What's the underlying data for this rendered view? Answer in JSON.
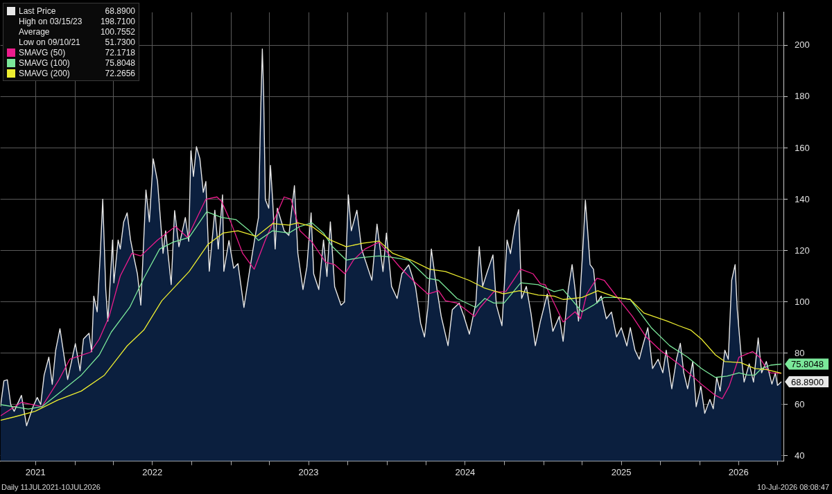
{
  "chart_data": {
    "type": "line",
    "legend": "top left",
    "grid": true,
    "xlim": [
      "2021-07-11",
      "2026-07-15"
    ],
    "xticks": [
      {
        "value": "2021-10-01",
        "label": "2021"
      },
      {
        "value": "2022-01-01",
        "label": null
      },
      {
        "value": "2022-04-01",
        "label": null
      },
      {
        "value": "2022-07-01",
        "label": "2022"
      },
      {
        "value": "2022-10-01",
        "label": null
      },
      {
        "value": "2023-01-01",
        "label": null
      },
      {
        "value": "2023-04-01",
        "label": null
      },
      {
        "value": "2023-07-01",
        "label": "2023"
      },
      {
        "value": "2023-10-01",
        "label": null
      },
      {
        "value": "2024-01-01",
        "label": null
      },
      {
        "value": "2024-04-01",
        "label": null
      },
      {
        "value": "2024-07-01",
        "label": "2024"
      },
      {
        "value": "2024-10-01",
        "label": null
      },
      {
        "value": "2025-01-01",
        "label": null
      },
      {
        "value": "2025-04-01",
        "label": null
      },
      {
        "value": "2025-07-01",
        "label": "2025"
      },
      {
        "value": "2025-10-01",
        "label": null
      },
      {
        "value": "2026-01-01",
        "label": null
      },
      {
        "value": "2026-04-01",
        "label": "2026"
      },
      {
        "value": "2026-07-01",
        "label": null
      }
    ],
    "ylim": [
      38,
      213
    ],
    "yticks": [
      40,
      60,
      80,
      100,
      120,
      140,
      160,
      180,
      200
    ],
    "annotations": [
      "68.8900",
      "High on 03/15/23 198.7100",
      "Average 100.7552",
      "Low on 09/10/21 51.7300",
      "72.1718",
      "75.8048",
      "72.2656",
      "Daily 11JUL2021-10JUL2026",
      "10-Jul-2026 08:08:47"
    ],
    "series": [
      {
        "name": "Last Price",
        "type": "area",
        "color": "#e8e8e8",
        "x": [
          "2021-07-11",
          "2021-07-19",
          "2021-07-27",
          "2021-08-04",
          "2021-08-12",
          "2021-08-29",
          "2021-09-06",
          "2021-09-10",
          "2021-09-25",
          "2021-10-05",
          "2021-10-13",
          "2021-10-21",
          "2021-11-01",
          "2021-11-09",
          "2021-11-17",
          "2021-11-27",
          "2021-12-07",
          "2021-12-15",
          "2022-01-02",
          "2022-01-13",
          "2022-01-21",
          "2022-02-03",
          "2022-02-09",
          "2022-02-14",
          "2022-02-22",
          "2022-03-01",
          "2022-03-07",
          "2022-03-14",
          "2022-03-19",
          "2022-03-30",
          "2022-04-02",
          "2022-04-12",
          "2022-04-17",
          "2022-04-25",
          "2022-05-03",
          "2022-05-11",
          "2022-05-19",
          "2022-05-27",
          "2022-06-04",
          "2022-06-16",
          "2022-06-24",
          "2022-07-03",
          "2022-07-13",
          "2022-07-26",
          "2022-08-01",
          "2022-08-14",
          "2022-08-22",
          "2022-09-01",
          "2022-09-16",
          "2022-09-24",
          "2022-09-29",
          "2022-10-05",
          "2022-10-12",
          "2022-10-20",
          "2022-10-28",
          "2022-11-03",
          "2022-11-11",
          "2022-11-24",
          "2022-12-02",
          "2022-12-12",
          "2022-12-15",
          "2022-12-27",
          "2023-01-07",
          "2023-01-17",
          "2023-01-31",
          "2023-02-13",
          "2023-02-24",
          "2023-03-06",
          "2023-03-11",
          "2023-03-15",
          "2023-03-18",
          "2023-03-22",
          "2023-03-30",
          "2023-04-03",
          "2023-04-08",
          "2023-04-14",
          "2023-04-19",
          "2023-05-05",
          "2023-05-16",
          "2023-05-29",
          "2023-06-06",
          "2023-06-18",
          "2023-06-27",
          "2023-07-07",
          "2023-07-13",
          "2023-07-25",
          "2023-08-05",
          "2023-08-13",
          "2023-08-21",
          "2023-08-31",
          "2023-09-15",
          "2023-09-23",
          "2023-10-02",
          "2023-10-09",
          "2023-10-22",
          "2023-11-02",
          "2023-11-26",
          "2023-12-08",
          "2023-12-22",
          "2023-12-30",
          "2024-01-11",
          "2024-01-24",
          "2024-02-04",
          "2024-02-20",
          "2024-03-07",
          "2024-03-19",
          "2024-03-28",
          "2024-04-05",
          "2024-04-13",
          "2024-04-22",
          "2024-05-06",
          "2024-05-22",
          "2024-06-01",
          "2024-06-17",
          "2024-06-28",
          "2024-07-11",
          "2024-07-26",
          "2024-08-03",
          "2024-08-11",
          "2024-08-21",
          "2024-09-04",
          "2024-09-12",
          "2024-09-25",
          "2024-10-07",
          "2024-10-15",
          "2024-10-25",
          "2024-11-03",
          "2024-11-10",
          "2024-11-21",
          "2024-12-02",
          "2024-12-12",
          "2024-12-24",
          "2025-01-09",
          "2025-01-22",
          "2025-02-06",
          "2025-02-15",
          "2025-02-27",
          "2025-03-08",
          "2025-03-15",
          "2025-03-23",
          "2025-04-03",
          "2025-04-08",
          "2025-04-13",
          "2025-04-19",
          "2025-04-27",
          "2025-05-05",
          "2025-05-15",
          "2025-05-27",
          "2025-06-08",
          "2025-06-20",
          "2025-07-01",
          "2025-07-14",
          "2025-07-22",
          "2025-08-02",
          "2025-08-12",
          "2025-08-20",
          "2025-09-01",
          "2025-09-12",
          "2025-09-25",
          "2025-10-06",
          "2025-10-14",
          "2025-10-27",
          "2025-11-07",
          "2025-11-16",
          "2025-11-24",
          "2025-12-03",
          "2025-12-15",
          "2025-12-23",
          "2026-01-03",
          "2026-01-12",
          "2026-01-24",
          "2026-02-01",
          "2026-02-09",
          "2026-02-17",
          "2026-02-28",
          "2026-03-08",
          "2026-03-16",
          "2026-03-24",
          "2026-03-29",
          "2026-04-06",
          "2026-04-14",
          "2026-04-26",
          "2026-05-06",
          "2026-05-17",
          "2026-05-25",
          "2026-06-05",
          "2026-06-18",
          "2026-06-26",
          "2026-07-01",
          "2026-07-10"
        ],
        "values": [
          59.2,
          69.3,
          69.7,
          60,
          57.4,
          63.6,
          55.7,
          51.73,
          59.2,
          62.8,
          60,
          71.5,
          78.5,
          67.9,
          81.2,
          89.6,
          78.5,
          69.8,
          83.8,
          73.2,
          85.6,
          87.8,
          80.6,
          102.3,
          96.2,
          118,
          140.1,
          104.9,
          92.6,
          124.2,
          107.5,
          124.2,
          120.7,
          131.3,
          134.8,
          124.2,
          117.3,
          111,
          98.8,
          143.7,
          131.3,
          155.9,
          147.1,
          119,
          127.8,
          106.8,
          135.7,
          121.6,
          133,
          123.7,
          159,
          149,
          160.6,
          155.9,
          142.8,
          147,
          112,
          135.8,
          120.7,
          141.8,
          112,
          124,
          113.2,
          115,
          97.9,
          112,
          123.4,
          133,
          173.5,
          198.71,
          182,
          140,
          136.6,
          153.3,
          140,
          120.7,
          136.6,
          127.8,
          126,
          145.4,
          119,
          104.9,
          113.6,
          134.8,
          111,
          104.9,
          124.2,
          110,
          131.3,
          106,
          98.8,
          100,
          141.8,
          127.8,
          135.8,
          120.7,
          108.5,
          130.4,
          111.9,
          126.9,
          106.1,
          101.4,
          111,
          114.5,
          106,
          91.7,
          86.4,
          97.9,
          120.7,
          109.4,
          94.5,
          83,
          97,
          99.6,
          94.5,
          87.5,
          99.6,
          121.6,
          106.1,
          111.4,
          118.4,
          98.8,
          90.8,
          124.2,
          118.9,
          129.6,
          136.1,
          101.4,
          106.1,
          95.5,
          83,
          92.6,
          103.1,
          88.6,
          94.4,
          84.7,
          104.9,
          114.6,
          104.9,
          92.6,
          123.4,
          139.7,
          128.6,
          114.6,
          112.8,
          99.6,
          102.3,
          93.5,
          96.1,
          86.4,
          90,
          82.9,
          90,
          81.2,
          77.7,
          82.9,
          90,
          74.1,
          77.7,
          72.4,
          81.2,
          66.2,
          77.7,
          83.9,
          72.4,
          66.2,
          76.8,
          59.2,
          67.1,
          56.6,
          62,
          58.4,
          70.6,
          65.3,
          81.2,
          77.7,
          108.5,
          114.6,
          97,
          81.2,
          68.8,
          75.9,
          68.8,
          86,
          72.4,
          76.8,
          68,
          72.4,
          67.5,
          68.89
        ]
      },
      {
        "name": "SMAVG (50)",
        "color": "#ec1c8c",
        "x": [
          "2021-07-11",
          "2021-08-29",
          "2021-10-16",
          "2021-11-25",
          "2021-12-20",
          "2022-02-06",
          "2022-02-27",
          "2022-03-22",
          "2022-04-17",
          "2022-05-14",
          "2022-06-04",
          "2022-07-13",
          "2022-08-24",
          "2022-09-21",
          "2022-11-03",
          "2022-11-29",
          "2022-12-10",
          "2022-12-31",
          "2023-01-28",
          "2023-02-24",
          "2023-03-22",
          "2023-05-05",
          "2023-05-21",
          "2023-06-11",
          "2023-07-09",
          "2023-08-10",
          "2023-08-31",
          "2023-09-24",
          "2023-10-14",
          "2023-11-10",
          "2023-12-13",
          "2024-01-03",
          "2024-01-30",
          "2024-03-07",
          "2024-04-05",
          "2024-04-30",
          "2024-05-16",
          "2024-06-12",
          "2024-07-03",
          "2024-07-23",
          "2024-08-05",
          "2024-09-06",
          "2024-10-04",
          "2024-11-08",
          "2024-12-07",
          "2024-12-24",
          "2025-01-04",
          "2025-02-15",
          "2025-03-15",
          "2025-03-28",
          "2025-04-11",
          "2025-05-05",
          "2025-05-22",
          "2025-06-28",
          "2025-07-27",
          "2025-08-28",
          "2025-09-30",
          "2025-11-12",
          "2026-01-04",
          "2026-02-06",
          "2026-02-22",
          "2026-03-10",
          "2026-04-02",
          "2026-05-04",
          "2026-05-20",
          "2026-06-05",
          "2026-06-15",
          "2026-07-10"
        ],
        "values": [
          55.6,
          60.9,
          59.2,
          69.8,
          77.7,
          80.4,
          85.6,
          94.4,
          110.2,
          119,
          118,
          124.2,
          129.5,
          125.2,
          140.1,
          141,
          139.2,
          131.3,
          119,
          112.8,
          124.2,
          141,
          140.1,
          127.8,
          123.4,
          115.5,
          114.6,
          111,
          116.4,
          120.7,
          123.4,
          119,
          113.7,
          107.5,
          103.1,
          104.4,
          100.5,
          99.6,
          97,
          94.4,
          97.9,
          104,
          104.1,
          112.8,
          111,
          107.1,
          106.8,
          92.2,
          96.2,
          93.5,
          103.1,
          109.3,
          108.5,
          100.5,
          94.4,
          86.4,
          81.2,
          75.9,
          68,
          63.6,
          62.3,
          67.2,
          78.5,
          80.7,
          78.5,
          74.1,
          72.4,
          72.1718
        ]
      },
      {
        "name": "SMAVG (100)",
        "color": "#7be89a",
        "x": [
          "2021-07-11",
          "2021-09-14",
          "2021-10-16",
          "2021-12-08",
          "2022-01-16",
          "2022-02-27",
          "2022-03-27",
          "2022-05-09",
          "2022-06-11",
          "2022-07-18",
          "2022-08-19",
          "2022-09-25",
          "2022-11-05",
          "2022-12-10",
          "2023-01-12",
          "2023-02-13",
          "2023-03-06",
          "2023-04-08",
          "2023-05-16",
          "2023-06-11",
          "2023-07-09",
          "2023-08-05",
          "2023-08-26",
          "2023-09-27",
          "2023-10-30",
          "2023-12-13",
          "2024-01-07",
          "2024-02-20",
          "2024-04-04",
          "2024-04-30",
          "2024-06-12",
          "2024-07-26",
          "2024-08-16",
          "2024-09-06",
          "2024-09-30",
          "2024-11-08",
          "2024-12-19",
          "2025-01-25",
          "2025-02-15",
          "2025-03-31",
          "2025-04-27",
          "2025-05-22",
          "2025-06-20",
          "2025-07-22",
          "2025-09-09",
          "2025-10-22",
          "2025-12-03",
          "2026-01-04",
          "2026-02-06",
          "2026-03-05",
          "2026-04-02",
          "2026-04-23",
          "2026-05-09",
          "2026-05-25",
          "2026-06-15",
          "2026-07-10"
        ],
        "values": [
          60,
          58.3,
          59.2,
          66.2,
          71.5,
          79.4,
          88.3,
          97.9,
          109.3,
          120.7,
          123.4,
          125.2,
          135.2,
          133,
          132.2,
          127.8,
          124,
          127.8,
          126.9,
          129.5,
          130.9,
          126.9,
          121.6,
          116.4,
          117.3,
          118,
          117.6,
          116.4,
          109.3,
          108.5,
          101.4,
          97.9,
          101.4,
          99.6,
          99.6,
          107.5,
          106.8,
          104.1,
          104.9,
          96.2,
          98.8,
          101.8,
          101.8,
          101,
          90,
          83,
          78.5,
          74.1,
          70.6,
          71.1,
          72.4,
          71.5,
          71.5,
          74.1,
          75.4,
          75.8048
        ]
      },
      {
        "name": "SMAVG (200)",
        "color": "#eeee30",
        "x": [
          "2021-07-11",
          "2021-08-12",
          "2021-09-30",
          "2021-11-22",
          "2022-01-16",
          "2022-03-11",
          "2022-05-03",
          "2022-06-11",
          "2022-07-23",
          "2022-09-25",
          "2022-11-08",
          "2022-12-13",
          "2023-01-17",
          "2023-03-01",
          "2023-04-08",
          "2023-05-16",
          "2023-06-06",
          "2023-07-09",
          "2023-08-21",
          "2023-09-27",
          "2023-11-04",
          "2023-12-13",
          "2024-01-14",
          "2024-02-25",
          "2024-04-09",
          "2024-05-16",
          "2024-07-10",
          "2024-08-16",
          "2024-09-29",
          "2024-11-05",
          "2024-12-19",
          "2025-01-25",
          "2025-02-15",
          "2025-03-31",
          "2025-05-07",
          "2025-06-20",
          "2025-07-22",
          "2025-08-23",
          "2025-10-16",
          "2025-11-12",
          "2025-12-10",
          "2026-01-04",
          "2026-02-06",
          "2026-02-28",
          "2026-04-06",
          "2026-05-09",
          "2026-06-05",
          "2026-07-10"
        ],
        "values": [
          53.9,
          55.2,
          57.4,
          61.8,
          65.3,
          71.5,
          82.9,
          89.1,
          100.5,
          111.9,
          122.5,
          126.9,
          127.8,
          125.6,
          130.6,
          130,
          130.9,
          129.5,
          124.2,
          121.6,
          122.9,
          123.8,
          119,
          116.4,
          112.8,
          111.9,
          108.5,
          105.4,
          103.2,
          104.4,
          102.7,
          102.3,
          101,
          101.8,
          104.4,
          101.8,
          101,
          95.7,
          92.6,
          90.8,
          89.1,
          85.6,
          79.4,
          76.8,
          76.4,
          74.1,
          73.7,
          72.2656
        ]
      }
    ]
  }
}
